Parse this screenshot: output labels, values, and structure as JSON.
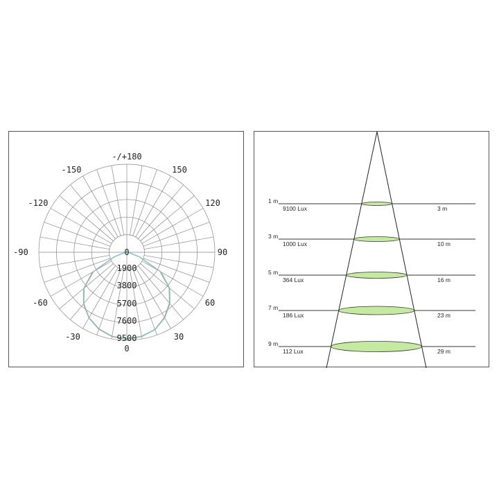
{
  "polar": {
    "angle_labels": {
      "top": "-/+180",
      "m150": "-150",
      "p150": "150",
      "m120": "-120",
      "p120": "120",
      "m90": "-90",
      "p90": "90",
      "m60": "-60",
      "p60": "60",
      "m30": "-30",
      "p30": "30",
      "bottom": "0"
    },
    "center_label": "0",
    "ring_labels": [
      "1900",
      "3800",
      "5700",
      "7600",
      "9500"
    ],
    "rmax": 9500,
    "curve_colors": [
      "#e8a070",
      "#9ccf8a",
      "#7ab8d8"
    ],
    "chart_data": {
      "type": "polar-line",
      "angles_deg": [
        -90,
        -80,
        -70,
        -60,
        -50,
        -40,
        -30,
        -20,
        -10,
        0,
        10,
        20,
        30,
        40,
        50,
        60,
        70,
        80,
        90
      ],
      "series": [
        {
          "values": [
            0,
            300,
            1500,
            4300,
            6100,
            7300,
            8200,
            8850,
            9250,
            9400,
            9250,
            8850,
            8100,
            7150,
            5950,
            4100,
            1400,
            300,
            0
          ]
        },
        {
          "values": [
            0,
            300,
            1400,
            4100,
            6000,
            7200,
            8150,
            8800,
            9200,
            9350,
            9250,
            8900,
            8200,
            7250,
            6050,
            4300,
            1500,
            300,
            0
          ]
        },
        {
          "values": [
            0,
            300,
            1450,
            4200,
            6050,
            7250,
            8150,
            8800,
            9200,
            9350,
            9200,
            8850,
            8150,
            7200,
            6000,
            4200,
            1450,
            300,
            0
          ]
        }
      ]
    }
  },
  "cone": {
    "rows": [
      {
        "distance": "1 m",
        "lux": "9100 Lux",
        "diameter": "3 m"
      },
      {
        "distance": "3 m",
        "lux": "1000 Lux",
        "diameter": "10 m"
      },
      {
        "distance": "5 m",
        "lux": "364 Lux",
        "diameter": "16 m"
      },
      {
        "distance": "7 m",
        "lux": "186 Lux",
        "diameter": "23 m"
      },
      {
        "distance": "9 m",
        "lux": "112 Lux",
        "diameter": "29 m"
      }
    ],
    "fill_color": "#c6e9a2"
  }
}
